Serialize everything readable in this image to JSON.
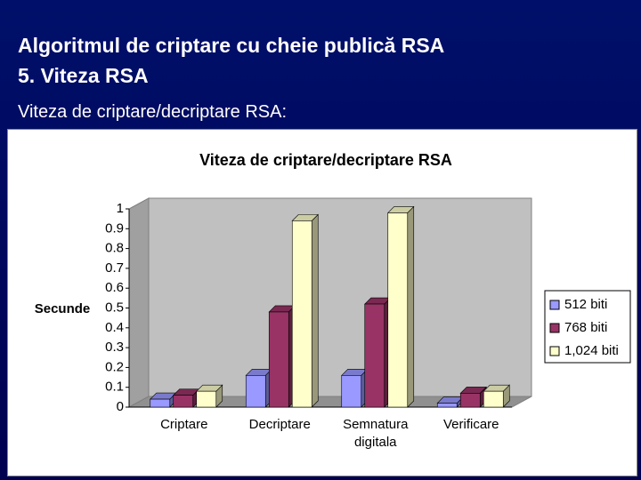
{
  "slide": {
    "title_line1": "Algoritmul de criptare cu cheie publică RSA",
    "title_line2": "5. Viteza RSA",
    "subtitle": "Viteza de criptare/decriptare RSA:"
  },
  "chart_data": {
    "type": "bar",
    "title": "Viteza de criptare/decriptare RSA",
    "y_label": "Secunde",
    "categories": [
      "Criptare",
      "Decriptare",
      "Semnatura digitala",
      "Verificare"
    ],
    "series": [
      {
        "name": "512 biti",
        "color": "#9999ff",
        "values": [
          0.04,
          0.16,
          0.16,
          0.02
        ]
      },
      {
        "name": "768 biti",
        "color": "#993366",
        "values": [
          0.06,
          0.48,
          0.52,
          0.07
        ]
      },
      {
        "name": "1,024 biti",
        "color": "#ffffcc",
        "values": [
          0.08,
          0.94,
          0.98,
          0.08
        ]
      }
    ],
    "ylim": [
      0,
      1
    ],
    "yticks": [
      0,
      0.1,
      0.2,
      0.3,
      0.4,
      0.5,
      0.6,
      0.7,
      0.8,
      0.9,
      1
    ],
    "legend": "right"
  }
}
